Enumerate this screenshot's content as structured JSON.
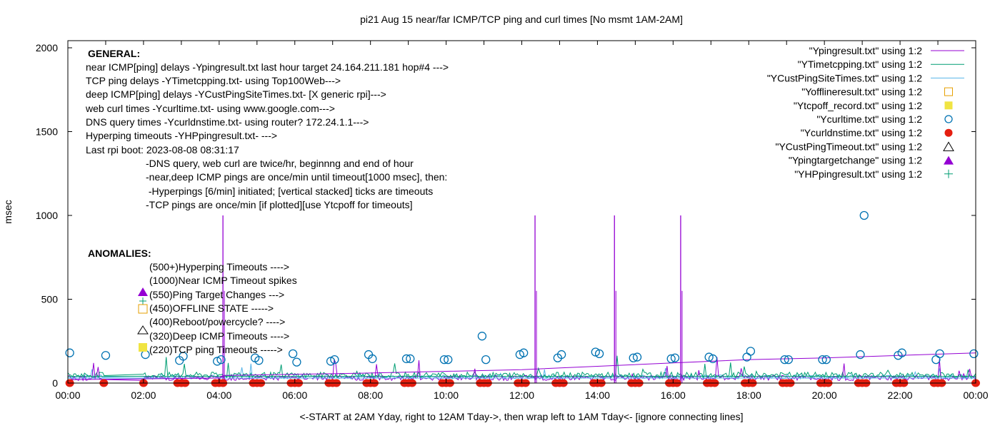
{
  "chart_data": {
    "type": "line",
    "title": "pi21 Aug 15  near/far ICMP/TCP ping and curl times [No msmt 1AM-2AM]",
    "xlabel": "<-START at 2AM Yday, right to 12AM Tday->, then wrap left to 1AM Tday<- [ignore connecting lines]",
    "ylabel": "msec",
    "xlim_hours": [
      0,
      24
    ],
    "ylim": [
      0,
      2000
    ],
    "x_ticks": [
      "00:00",
      "02:00",
      "04:00",
      "06:00",
      "08:00",
      "10:00",
      "12:00",
      "14:00",
      "16:00",
      "18:00",
      "20:00",
      "22:00",
      "00:00"
    ],
    "y_ticks": [
      0,
      500,
      1000,
      1500,
      2000
    ],
    "grid": false,
    "legend_position": "top-right",
    "legend": [
      {
        "label": "\"Ypingresult.txt\" using 1:2",
        "kind": "line",
        "color": "#9400d3"
      },
      {
        "label": "\"YTimetcpping.txt\" using 1:2",
        "kind": "line",
        "color": "#009e73"
      },
      {
        "label": "\"YCustPingSiteTimes.txt\" using 1:2",
        "kind": "line",
        "color": "#56b4e9"
      },
      {
        "label": "\"Yofflineresult.txt\" using 1:2",
        "kind": "open-square",
        "color": "#e69f00"
      },
      {
        "label": "\"Ytcpoff_record.txt\" using 1:2",
        "kind": "filled-square",
        "color": "#f0e442"
      },
      {
        "label": "\"Ycurltime.txt\" using 1:2",
        "kind": "open-circle",
        "color": "#0072b2"
      },
      {
        "label": "\"Ycurldnstime.txt\" using 1:2",
        "kind": "filled-circle",
        "color": "#e51e10"
      },
      {
        "label": "\"YCustPingTimeout.txt\" using 1:2",
        "kind": "open-triangle",
        "color": "#000000"
      },
      {
        "label": "\"Ypingtargetchange\" using 1:2",
        "kind": "filled-triangle",
        "color": "#9400d3"
      },
      {
        "label": "\"YHPpingresult.txt\" using 1:2",
        "kind": "plus",
        "color": "#009e73"
      }
    ],
    "annotations": {
      "general_heading": "GENERAL:",
      "general_lines": [
        "near ICMP[ping] delays -Ypingresult.txt last hour target 24.164.211.181 hop#4 --->",
        "TCP ping delays -YTimetcpping.txt- using Top100Web--->",
        "deep ICMP[ping] delays -YCustPingSiteTimes.txt- [X generic rpi]--->",
        "web curl times -Ycurltime.txt- using www.google.com--->",
        "DNS query times -Ycurldnstime.txt- using router? 172.24.1.1--->",
        "Hyperping timeouts -YHPpingresult.txt- --->",
        "Last rpi boot: 2023-08-08 08:31:17"
      ],
      "notes": [
        "-DNS query, web curl are twice/hr, beginnng and end of hour",
        "-near,deep ICMP pings are once/min until timeout[1000 msec], then:",
        " -Hyperpings [6/min] initiated; [vertical stacked] ticks are timeouts",
        "-TCP pings are once/min [if plotted][use Ytcpoff for timeouts]"
      ],
      "anomalies_heading": "ANOMALIES:",
      "anomalies": [
        {
          "text": "(500+)Hyperping Timeouts ---->",
          "marker": "none"
        },
        {
          "text": "(1000)Near ICMP Timeout spikes",
          "marker": "none"
        },
        {
          "text": "(550)Ping Target Changes --->",
          "marker": "filled-triangle"
        },
        {
          "text": "(450)OFFLINE STATE ----->",
          "marker": "open-square"
        },
        {
          "text": "(400)Reboot/powercycle? ---->",
          "marker": "none"
        },
        {
          "text": "(320)Deep ICMP Timeouts ---->",
          "marker": "open-triangle"
        },
        {
          "text": "(220)TCP ping Timeouts ----->",
          "marker": "filled-square"
        }
      ]
    },
    "series": [
      {
        "name": "Ycurltime",
        "kind": "open-circle",
        "points": [
          [
            0.05,
            180
          ],
          [
            1.0,
            165
          ],
          [
            2.05,
            170
          ],
          [
            2.95,
            135
          ],
          [
            3.05,
            160
          ],
          [
            3.95,
            130
          ],
          [
            4.05,
            140
          ],
          [
            4.95,
            150
          ],
          [
            5.05,
            135
          ],
          [
            5.95,
            175
          ],
          [
            6.05,
            125
          ],
          [
            6.95,
            130
          ],
          [
            7.05,
            140
          ],
          [
            7.95,
            170
          ],
          [
            8.05,
            145
          ],
          [
            8.95,
            145
          ],
          [
            9.05,
            145
          ],
          [
            9.95,
            140
          ],
          [
            10.05,
            140
          ],
          [
            10.95,
            280
          ],
          [
            11.05,
            140
          ],
          [
            11.95,
            170
          ],
          [
            12.05,
            180
          ],
          [
            12.95,
            150
          ],
          [
            13.05,
            170
          ],
          [
            13.95,
            185
          ],
          [
            14.05,
            175
          ],
          [
            14.95,
            150
          ],
          [
            15.05,
            155
          ],
          [
            15.95,
            145
          ],
          [
            16.05,
            150
          ],
          [
            16.95,
            155
          ],
          [
            17.05,
            145
          ],
          [
            17.95,
            155
          ],
          [
            18.05,
            190
          ],
          [
            18.95,
            140
          ],
          [
            19.05,
            140
          ],
          [
            19.95,
            140
          ],
          [
            20.05,
            140
          ],
          [
            20.95,
            170
          ],
          [
            21.05,
            1000
          ],
          [
            21.95,
            165
          ],
          [
            22.05,
            180
          ],
          [
            22.95,
            140
          ],
          [
            23.05,
            175
          ],
          [
            23.95,
            175
          ]
        ]
      },
      {
        "name": "Ycurldnstime",
        "kind": "filled-circle",
        "points_hours": [
          0.05,
          0.95,
          2.0,
          2.9,
          3.0,
          3.1,
          3.9,
          4.0,
          4.1,
          4.9,
          5.0,
          5.1,
          5.9,
          6.0,
          6.1,
          6.9,
          7.0,
          7.1,
          7.9,
          8.0,
          8.1,
          8.9,
          9.0,
          9.1,
          9.9,
          10.0,
          10.1,
          10.9,
          11.0,
          11.1,
          11.9,
          12.0,
          12.1,
          12.9,
          13.0,
          13.1,
          13.9,
          14.0,
          14.1,
          14.9,
          15.0,
          15.1,
          15.9,
          16.0,
          16.1,
          16.9,
          17.0,
          17.1,
          17.9,
          18.0,
          18.1,
          18.9,
          19.0,
          19.1,
          19.9,
          20.0,
          20.1,
          20.9,
          21.0,
          21.1,
          21.9,
          22.0,
          22.1,
          22.9,
          23.0,
          23.1,
          24.0
        ],
        "value": 0
      },
      {
        "name": "Ypingresult spikes",
        "kind": "spike",
        "points": [
          [
            4.1,
            1000
          ],
          [
            12.35,
            1000
          ],
          [
            14.45,
            1000
          ],
          [
            16.2,
            1000
          ]
        ]
      },
      {
        "name": "Ypingresult baseline trend",
        "kind": "line",
        "points": [
          [
            0,
            20
          ],
          [
            2,
            25
          ],
          [
            4,
            30
          ],
          [
            4.1,
            45
          ],
          [
            8,
            60
          ],
          [
            12,
            80
          ],
          [
            14,
            100
          ],
          [
            16,
            120
          ],
          [
            18,
            140
          ],
          [
            20,
            150
          ],
          [
            22,
            165
          ],
          [
            24,
            180
          ]
        ]
      }
    ]
  }
}
